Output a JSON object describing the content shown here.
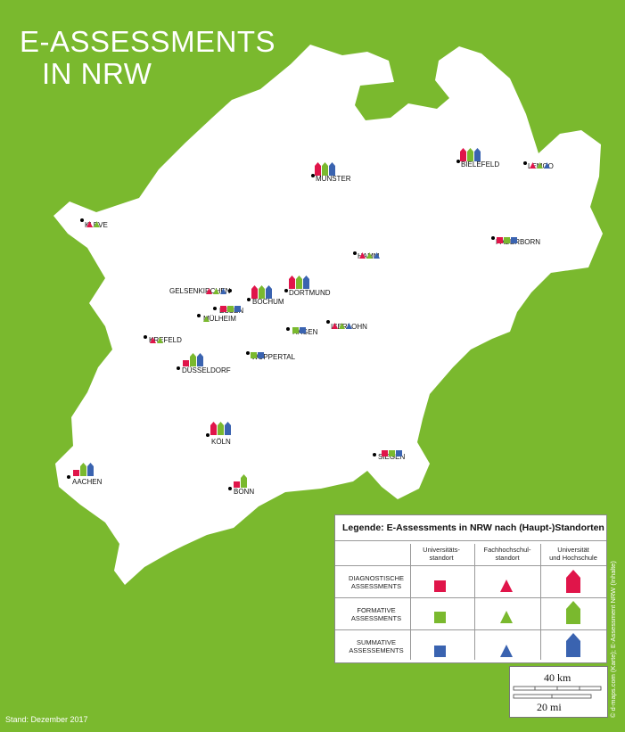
{
  "title": {
    "line1": "E-ASSESSMENTS",
    "line2": "IN NRW"
  },
  "colors": {
    "background": "#7ab92e",
    "diagnostic": "#e0154a",
    "formative": "#7ab92e",
    "summative": "#3a63b0",
    "land": "#ffffff"
  },
  "cities": [
    {
      "id": "muenster",
      "name": "MÜNSTER",
      "marker": "house",
      "types": [
        "diagnostic",
        "formative",
        "summative"
      ]
    },
    {
      "id": "bielefeld",
      "name": "BIELEFELD",
      "marker": "house",
      "types": [
        "diagnostic",
        "formative",
        "summative"
      ]
    },
    {
      "id": "lemgo",
      "name": "LEMGO",
      "marker": "triangle",
      "types": [
        "diagnostic",
        "formative",
        "summative"
      ]
    },
    {
      "id": "kleve",
      "name": "KLEVE",
      "marker": "triangle",
      "types": [
        "diagnostic",
        "formative"
      ]
    },
    {
      "id": "paderborn",
      "name": "PADERBORN",
      "marker": "square",
      "types": [
        "diagnostic",
        "formative",
        "summative"
      ]
    },
    {
      "id": "hamm",
      "name": "HAMM",
      "marker": "triangle",
      "types": [
        "diagnostic",
        "formative",
        "summative"
      ]
    },
    {
      "id": "gelsenkirchen",
      "name": "GELSENKIRCHEN",
      "marker": "triangle",
      "types": [
        "diagnostic",
        "formative",
        "summative"
      ]
    },
    {
      "id": "dortmund",
      "name": "DORTMUND",
      "marker": "house",
      "types": [
        "diagnostic",
        "formative",
        "summative"
      ]
    },
    {
      "id": "bochum",
      "name": "BOCHUM",
      "marker": "house",
      "types": [
        "diagnostic",
        "formative",
        "summative"
      ]
    },
    {
      "id": "essen",
      "name": "ESSEN",
      "marker": "square",
      "types": [
        "diagnostic",
        "formative",
        "summative"
      ]
    },
    {
      "id": "muelheim",
      "name": "MÜLHEIM",
      "marker": "triangle",
      "types": [
        "formative"
      ]
    },
    {
      "id": "hagen",
      "name": "HAGEN",
      "marker": "square",
      "types": [
        "formative",
        "summative"
      ]
    },
    {
      "id": "iserlohn",
      "name": "ISERLOHN",
      "marker": "triangle",
      "types": [
        "diagnostic",
        "formative",
        "summative"
      ]
    },
    {
      "id": "krefeld",
      "name": "KREFELD",
      "marker": "triangle",
      "types": [
        "diagnostic",
        "formative"
      ]
    },
    {
      "id": "wuppertal",
      "name": "WUPPERTAL",
      "marker": "square",
      "types": [
        "formative",
        "summative"
      ]
    },
    {
      "id": "duesseldorf",
      "name": "DÜSSELDORF",
      "marker": "mixed",
      "types": [
        "diagnostic",
        "formative",
        "summative"
      ]
    },
    {
      "id": "koeln",
      "name": "KÖLN",
      "marker": "house",
      "types": [
        "diagnostic",
        "formative",
        "summative"
      ]
    },
    {
      "id": "siegen",
      "name": "SIEGEN",
      "marker": "square",
      "types": [
        "diagnostic",
        "formative",
        "summative"
      ]
    },
    {
      "id": "aachen",
      "name": "AACHEN",
      "marker": "mixed",
      "types": [
        "diagnostic",
        "formative",
        "summative"
      ]
    },
    {
      "id": "bonn",
      "name": "BONN",
      "marker": "mixed",
      "types": [
        "diagnostic",
        "formative"
      ]
    }
  ],
  "legend": {
    "title": "Legende: E-Assessments in NRW nach (Haupt-)Standorten",
    "col1": [
      "Universitäts-",
      "standort"
    ],
    "col2": [
      "Fachhochschul-",
      "standort"
    ],
    "col3": [
      "Universität",
      "und Hochschule"
    ],
    "rows": [
      [
        "DIAGNOSTISCHE",
        "ASSESSMENTS"
      ],
      [
        "FORMATIVE",
        "ASSESSMENTS"
      ],
      [
        "SUMMATIVE",
        "ASSESSEMENTS"
      ]
    ]
  },
  "scale": {
    "km": "40 km",
    "mi": "20 mi"
  },
  "footer": {
    "stand": "Stand: Dezember 2017",
    "credit": "© d-maps.com (Karte); E-Assessment NRW (Inhalte)"
  }
}
